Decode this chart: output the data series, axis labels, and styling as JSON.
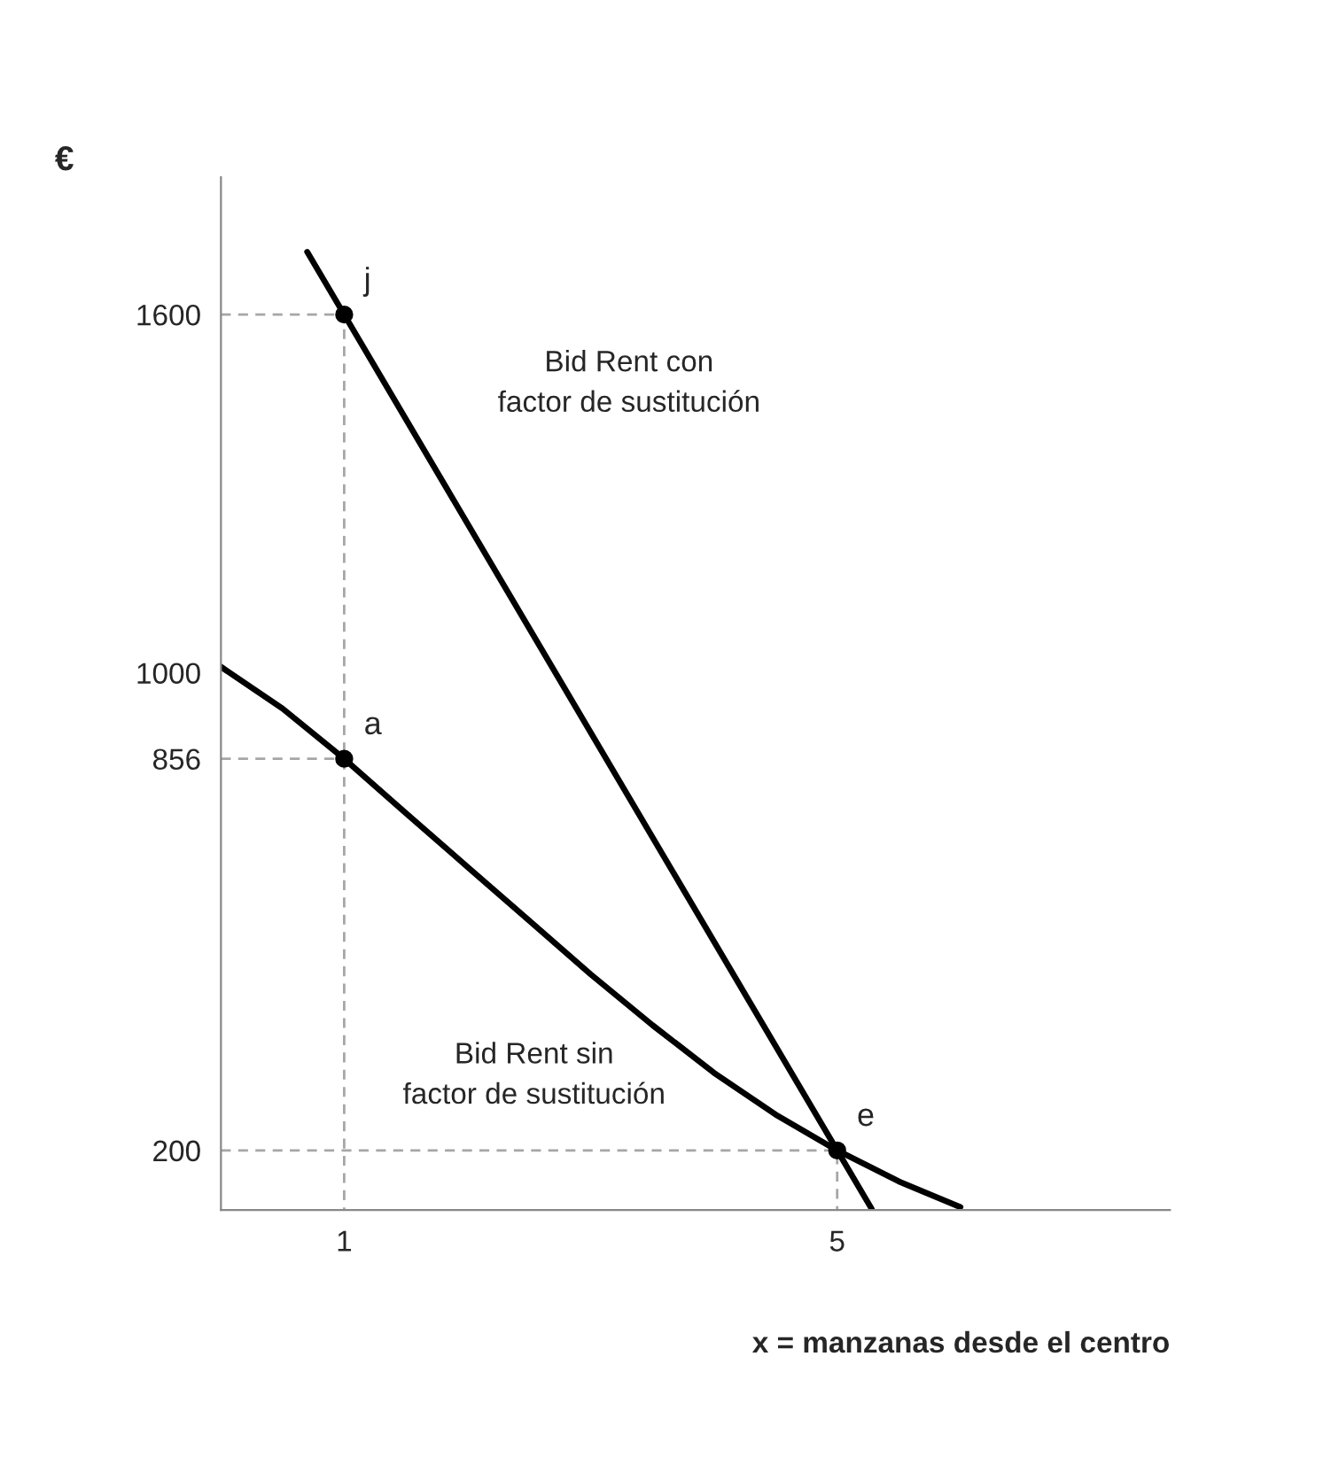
{
  "chart_data": {
    "type": "line",
    "xlabel": "x = manzanas desde el centro",
    "ylabel": "€",
    "xlim": [
      0,
      7.7
    ],
    "ylim": [
      100,
      1830
    ],
    "xticks": [
      1,
      5
    ],
    "yticks": [
      200,
      856,
      1000,
      1600
    ],
    "grid": false,
    "series": [
      {
        "color": "#000000",
        "x": [
          0.7,
          1,
          5,
          5.28
        ],
        "values": [
          1705,
          1600,
          200,
          102
        ]
      },
      {
        "color": "#000000",
        "x": [
          0,
          0.5,
          1,
          1.5,
          2,
          2.5,
          3,
          3.5,
          4,
          4.5,
          5,
          5.5,
          6.0
        ],
        "values": [
          1010,
          940,
          856,
          765,
          675,
          585,
          495,
          410,
          330,
          260,
          200,
          148,
          105
        ]
      },
      {
        "color": "#a6a6a6",
        "line_style": "dashed",
        "x": [
          0,
          1,
          1
        ],
        "values": [
          1600,
          1600,
          100
        ]
      },
      {
        "color": "#a6a6a6",
        "line_style": "dashed",
        "x": [
          0,
          1
        ],
        "values": [
          856,
          856
        ]
      },
      {
        "color": "#a6a6a6",
        "line_style": "dashed",
        "x": [
          0,
          5,
          5
        ],
        "values": [
          200,
          200,
          100
        ]
      },
      {
        "type": "scatter",
        "color": "#000000",
        "marker": "circle",
        "x": [
          1,
          1,
          5
        ],
        "values": [
          1600,
          856,
          200
        ]
      }
    ],
    "annotations": [
      "j",
      "a",
      "e",
      "Bid Rent con\nfactor de sustitución",
      "Bid Rent sin\nfactor de sustitución"
    ]
  }
}
